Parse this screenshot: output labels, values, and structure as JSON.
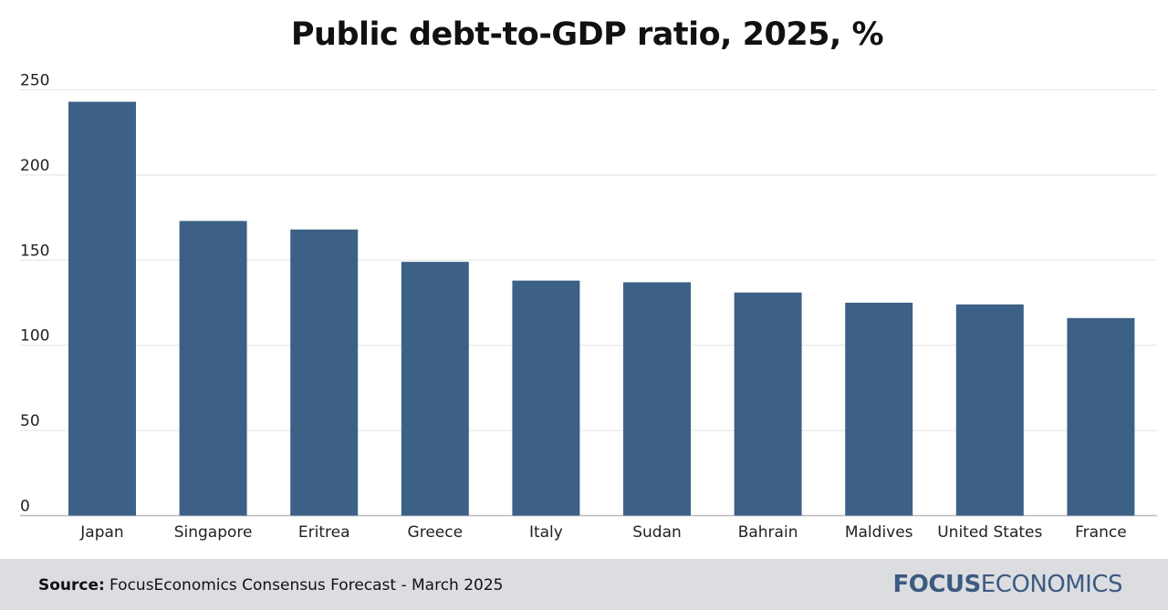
{
  "chart_data": {
    "type": "bar",
    "title": "Public debt-to-GDP ratio, 2025, %",
    "categories": [
      "Japan",
      "Singapore",
      "Eritrea",
      "Greece",
      "Italy",
      "Sudan",
      "Bahrain",
      "Maldives",
      "United States",
      "France"
    ],
    "values": [
      243,
      173,
      168,
      149,
      138,
      137,
      131,
      125,
      124,
      116
    ],
    "ylim": [
      0,
      250
    ],
    "yticks": [
      0,
      50,
      100,
      150,
      200,
      250
    ],
    "grid": true,
    "bar_color": "#3d6186"
  },
  "footer": {
    "source_label": "Source:",
    "source_text": "FocusEconomics Consensus Forecast - March 2025",
    "brand_bold": "FOCUS",
    "brand_rest": "ECONOMICS",
    "brand_color": "#3d5a80"
  }
}
